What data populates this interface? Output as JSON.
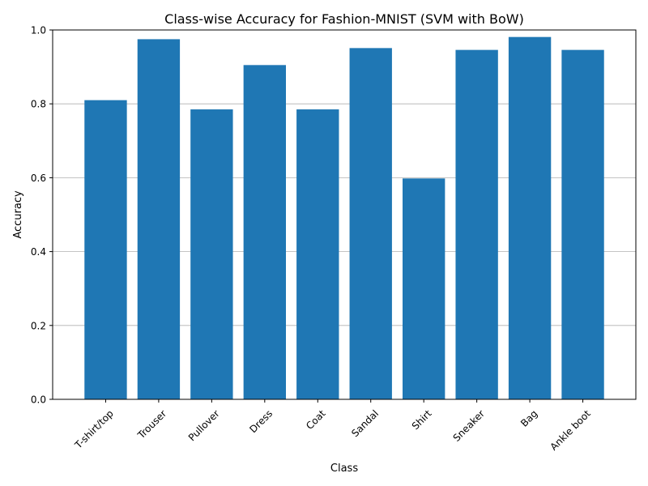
{
  "chart_data": {
    "type": "bar",
    "title": "Class-wise Accuracy for Fashion-MNIST (SVM with BoW)",
    "xlabel": "Class",
    "ylabel": "Accuracy",
    "categories": [
      "T-shirt/top",
      "Trouser",
      "Pullover",
      "Dress",
      "Coat",
      "Sandal",
      "Shirt",
      "Sneaker",
      "Bag",
      "Ankle boot"
    ],
    "values": [
      0.81,
      0.975,
      0.785,
      0.905,
      0.785,
      0.951,
      0.598,
      0.946,
      0.981,
      0.946
    ],
    "ylim": [
      0,
      1.0
    ],
    "yticks": [
      0.0,
      0.2,
      0.4,
      0.6,
      0.8,
      1.0
    ],
    "ytick_labels": [
      "0.0",
      "0.2",
      "0.4",
      "0.6",
      "0.8",
      "1.0"
    ],
    "grid": "y-axis only",
    "legend": "none",
    "colors": {
      "bar": "#1f77b4",
      "grid": "#b0b0b0",
      "axis": "#000000"
    }
  }
}
